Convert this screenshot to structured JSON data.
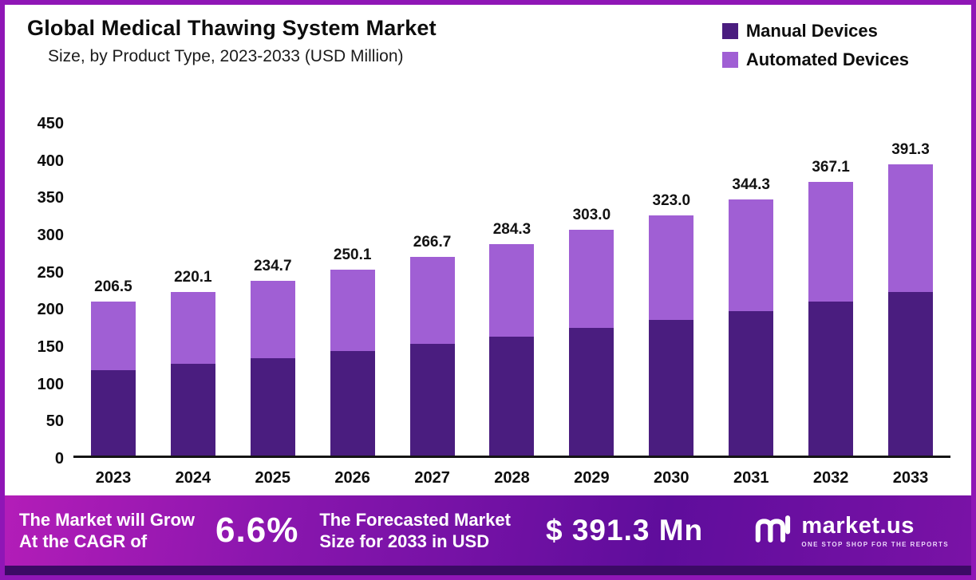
{
  "header": {
    "title": "Global Medical Thawing System Market",
    "subtitle": "Size, by Product Type, 2023-2033 (USD Million)"
  },
  "legend": [
    {
      "label": "Manual Devices",
      "color": "#4a1d7f"
    },
    {
      "label": "Automated Devices",
      "color": "#a05fd4"
    }
  ],
  "chart_data": {
    "type": "bar",
    "stacked": true,
    "title": "Global Medical Thawing System Market Size, by Product Type, 2023-2033 (USD Million)",
    "categories": [
      "2023",
      "2024",
      "2025",
      "2026",
      "2027",
      "2028",
      "2029",
      "2030",
      "2031",
      "2032",
      "2033"
    ],
    "series": [
      {
        "name": "Manual Devices",
        "color": "#4a1d7f",
        "values": [
          115.0,
          123.0,
          131.0,
          140.0,
          150.0,
          160.0,
          171.0,
          182.0,
          194.0,
          206.5,
          220.0
        ]
      },
      {
        "name": "Automated Devices",
        "color": "#a05fd4",
        "values": [
          91.5,
          97.1,
          103.7,
          110.1,
          116.7,
          124.3,
          132.0,
          141.0,
          150.3,
          160.6,
          171.3
        ]
      }
    ],
    "totals": [
      206.5,
      220.1,
      234.7,
      250.1,
      266.7,
      284.3,
      303.0,
      323.0,
      344.3,
      367.1,
      391.3
    ],
    "ylim": [
      0,
      450
    ],
    "yticks": [
      0,
      50,
      100,
      150,
      200,
      250,
      300,
      350,
      400,
      450
    ],
    "legend_position": "top-right",
    "grid": false
  },
  "footer": {
    "left_text": "The Market will Grow\nAt the CAGR of",
    "cagr": "6.6%",
    "mid_text": "The Forecasted Market\nSize for 2033 in USD",
    "value": "$ 391.3 Mn",
    "brand": "market.us",
    "tagline": "ONE STOP SHOP FOR THE REPORTS"
  }
}
